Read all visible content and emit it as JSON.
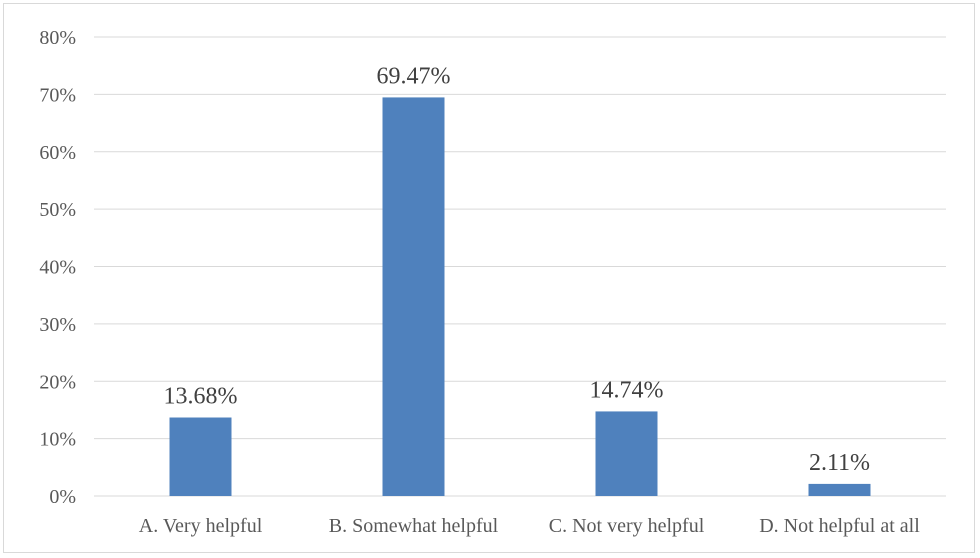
{
  "chart_data": {
    "type": "bar",
    "categories": [
      "A. Very helpful",
      "B. Somewhat helpful",
      "C. Not very helpful",
      "D. Not helpful at all"
    ],
    "values": [
      13.68,
      69.47,
      14.74,
      2.11
    ],
    "data_labels": [
      "13.68%",
      "69.47%",
      "14.74%",
      "2.11%"
    ],
    "y_ticks": [
      "0%",
      "10%",
      "20%",
      "30%",
      "40%",
      "50%",
      "60%",
      "70%",
      "80%"
    ],
    "ylim": [
      0,
      80
    ],
    "grid": true,
    "legend": "none",
    "bar_color": "#4f81bd"
  }
}
